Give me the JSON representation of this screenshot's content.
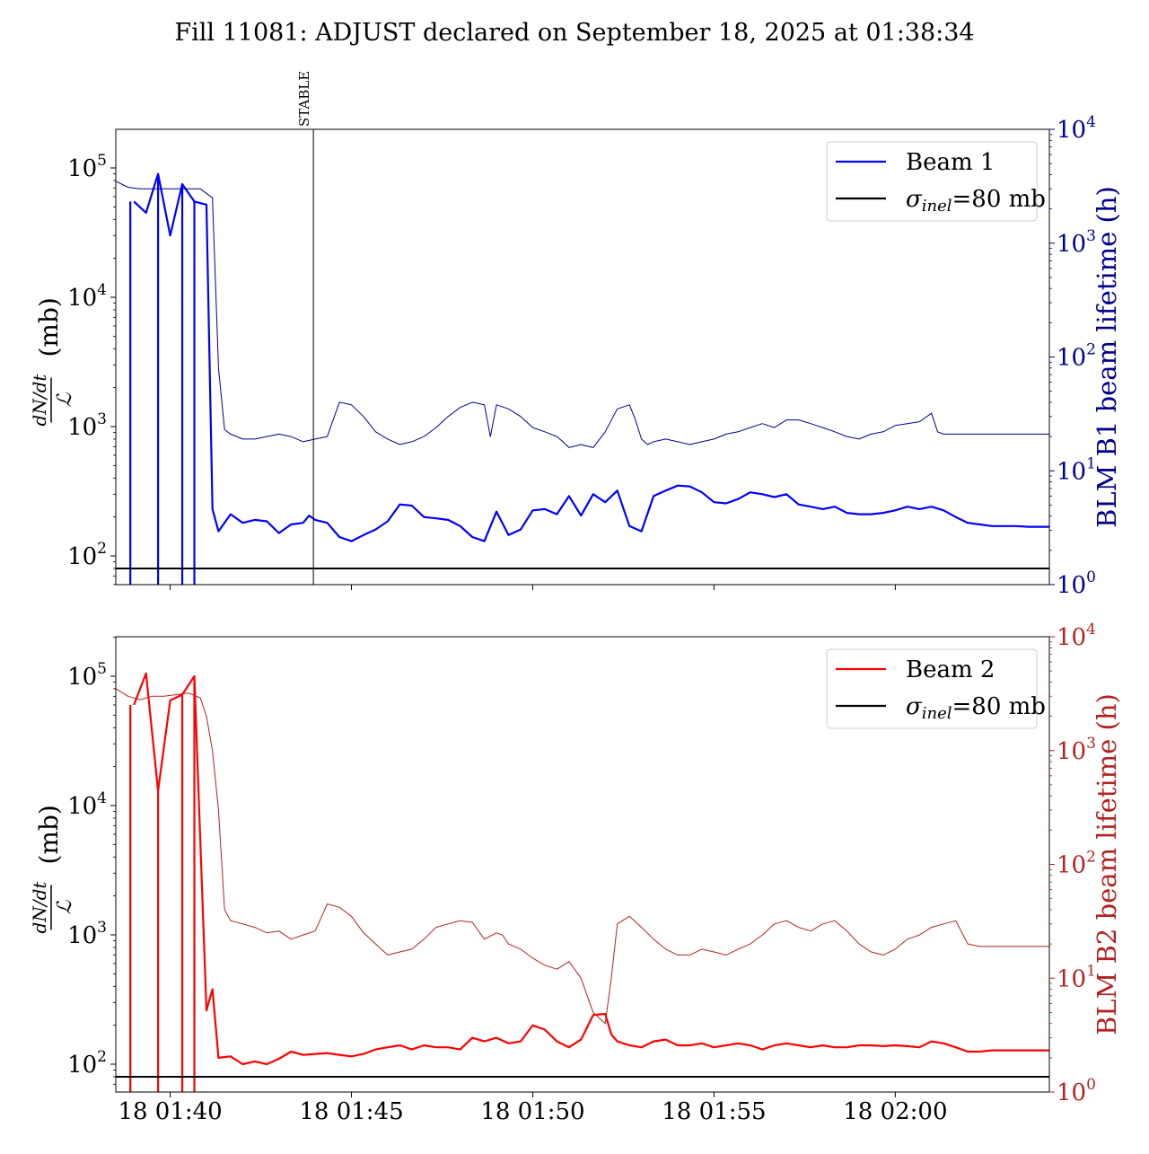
{
  "title": "Fill 11081: ADJUST declared on September 18, 2025 at 01:38:34",
  "colors": {
    "beam1": "#0000ff",
    "beam1_lifetime": "#00008b",
    "beam2": "#ff0000",
    "beam2_lifetime": "#b22222",
    "reference": "#000000",
    "axis": "#000000"
  },
  "chart_data": [
    {
      "type": "line",
      "panel": "top",
      "xlabel": "",
      "ylabel_left": "dN/dt / L (mb)",
      "ylabel_left_parts": {
        "num": "dN/dt",
        "den": "ℒ",
        "unit": "(mb)"
      },
      "ylabel_right": "BLM B1 beam lifetime (h)",
      "yscale_left": "log",
      "yscale_right": "log",
      "xlim": [
        "01:38:30",
        "02:04:15"
      ],
      "ylim_left": [
        60,
        200000
      ],
      "ylim_right": [
        1,
        10000
      ],
      "left_ticks": [
        "10^2",
        "10^3",
        "10^4",
        "10^5"
      ],
      "right_ticks": [
        "10^0",
        "10^1",
        "10^2",
        "10^3",
        "10^4"
      ],
      "x_ticks": [
        "18 01:40",
        "18 01:45",
        "18 01:50",
        "18 01:55",
        "18 02:00"
      ],
      "x_tick_labels_visible": false,
      "annotation": {
        "label": "STABLE",
        "time": "01:43:57"
      },
      "legend": {
        "position": "top-right",
        "entries": [
          "Beam 1",
          "σinel=80 mb"
        ],
        "sigma_main": "σ",
        "sigma_sub": "inel",
        "sigma_rest": "=80 mb"
      },
      "reference_line": {
        "value": 80,
        "axis": "left"
      },
      "series": [
        {
          "name": "Beam 1",
          "axis": "left",
          "x": [
            "01:39:00",
            "01:39:20",
            "01:39:40",
            "01:40:00",
            "01:40:20",
            "01:40:40",
            "01:41:00",
            "01:41:10",
            "01:41:20",
            "01:41:40",
            "01:42:00",
            "01:42:20",
            "01:42:40",
            "01:43:00",
            "01:43:20",
            "01:43:40",
            "01:43:50",
            "01:44:00",
            "01:44:20",
            "01:44:40",
            "01:45:00",
            "01:45:20",
            "01:45:40",
            "01:46:00",
            "01:46:20",
            "01:46:40",
            "01:47:00",
            "01:47:20",
            "01:47:40",
            "01:48:00",
            "01:48:20",
            "01:48:40",
            "01:49:00",
            "01:49:20",
            "01:49:40",
            "01:50:00",
            "01:50:20",
            "01:50:40",
            "01:51:00",
            "01:51:20",
            "01:51:40",
            "01:52:00",
            "01:52:20",
            "01:52:40",
            "01:53:00",
            "01:53:20",
            "01:53:40",
            "01:54:00",
            "01:54:20",
            "01:54:40",
            "01:55:00",
            "01:55:20",
            "01:55:40",
            "01:56:00",
            "01:56:20",
            "01:56:40",
            "01:57:00",
            "01:57:20",
            "01:57:40",
            "01:58:00",
            "01:58:20",
            "01:58:40",
            "01:59:00",
            "01:59:20",
            "01:59:40",
            "02:00:00",
            "02:00:20",
            "02:00:40",
            "02:01:00",
            "02:01:20",
            "02:01:40",
            "02:02:00",
            "02:02:20",
            "02:02:40",
            "02:03:00",
            "02:03:20",
            "02:03:40",
            "02:04:15"
          ],
          "y": [
            55000,
            45000,
            90000,
            30000,
            75000,
            55000,
            52000,
            230,
            155,
            210,
            180,
            190,
            185,
            150,
            175,
            180,
            205,
            190,
            180,
            140,
            130,
            145,
            160,
            185,
            250,
            245,
            200,
            195,
            190,
            170,
            140,
            130,
            220,
            145,
            160,
            225,
            230,
            210,
            290,
            205,
            300,
            260,
            320,
            170,
            155,
            290,
            320,
            350,
            345,
            310,
            260,
            255,
            275,
            310,
            300,
            285,
            300,
            250,
            240,
            230,
            240,
            215,
            210,
            210,
            215,
            225,
            240,
            230,
            240,
            225,
            200,
            180,
            175,
            170,
            170,
            170,
            168,
            168
          ]
        },
        {
          "name": "",
          "axis": "right",
          "x": [
            "01:38:30",
            "01:38:50",
            "01:39:10",
            "01:39:30",
            "01:39:50",
            "01:40:10",
            "01:40:30",
            "01:40:50",
            "01:41:10",
            "01:41:20",
            "01:41:30",
            "01:41:40",
            "01:42:00",
            "01:42:20",
            "01:42:40",
            "01:43:00",
            "01:43:20",
            "01:43:40",
            "01:44:00",
            "01:44:20",
            "01:44:40",
            "01:45:00",
            "01:45:20",
            "01:45:40",
            "01:46:00",
            "01:46:20",
            "01:46:40",
            "01:47:00",
            "01:47:20",
            "01:47:40",
            "01:48:00",
            "01:48:20",
            "01:48:40",
            "01:48:50",
            "01:49:00",
            "01:49:20",
            "01:49:40",
            "01:50:00",
            "01:50:20",
            "01:50:40",
            "01:50:50",
            "01:51:00",
            "01:51:20",
            "01:51:40",
            "01:52:00",
            "01:52:20",
            "01:52:40",
            "01:52:50",
            "01:53:00",
            "01:53:10",
            "01:53:20",
            "01:53:40",
            "01:54:00",
            "01:54:20",
            "01:54:40",
            "01:55:00",
            "01:55:20",
            "01:55:40",
            "01:56:00",
            "01:56:20",
            "01:56:40",
            "01:57:00",
            "01:57:20",
            "01:57:40",
            "01:58:00",
            "01:58:20",
            "01:58:40",
            "01:59:00",
            "01:59:20",
            "01:59:40",
            "02:00:00",
            "02:00:20",
            "02:00:40",
            "02:01:00",
            "02:01:10",
            "02:01:20",
            "02:01:40",
            "02:02:00",
            "02:02:20",
            "02:02:40",
            "02:03:00",
            "02:03:20",
            "02:03:40",
            "02:04:15"
          ],
          "y": [
            3500,
            3100,
            3000,
            3000,
            3000,
            3000,
            3000,
            3000,
            2500,
            80,
            23,
            21,
            19,
            19,
            20,
            21,
            20,
            18,
            19,
            20,
            40,
            38,
            30,
            22,
            19,
            17,
            18,
            20,
            24,
            30,
            36,
            40,
            38,
            20,
            38,
            35,
            30,
            24,
            22,
            20,
            18,
            16,
            17,
            16,
            22,
            35,
            38,
            28,
            19,
            17,
            18,
            19,
            18,
            17,
            18,
            19,
            21,
            22,
            24,
            26,
            24,
            28,
            28,
            26,
            24,
            22,
            20,
            19,
            21,
            22,
            25,
            26,
            27,
            32,
            22,
            21,
            21,
            21,
            21,
            21,
            21,
            21,
            21,
            21
          ]
        }
      ]
    },
    {
      "type": "line",
      "panel": "bottom",
      "xlabel": "",
      "ylabel_left": "dN/dt / L (mb)",
      "ylabel_left_parts": {
        "num": "dN/dt",
        "den": "ℒ",
        "unit": "(mb)"
      },
      "ylabel_right": "BLM B2 beam lifetime (h)",
      "yscale_left": "log",
      "yscale_right": "log",
      "xlim": [
        "01:38:30",
        "02:04:15"
      ],
      "ylim_left": [
        60,
        200000
      ],
      "ylim_right": [
        1,
        10000
      ],
      "left_ticks": [
        "10^2",
        "10^3",
        "10^4",
        "10^5"
      ],
      "right_ticks": [
        "10^0",
        "10^1",
        "10^2",
        "10^3",
        "10^4"
      ],
      "x_ticks": [
        "18 01:40",
        "18 01:45",
        "18 01:50",
        "18 01:55",
        "18 02:00"
      ],
      "x_tick_labels_visible": true,
      "legend": {
        "position": "top-right",
        "entries": [
          "Beam 2",
          "σinel=80 mb"
        ],
        "sigma_main": "σ",
        "sigma_sub": "inel",
        "sigma_rest": "=80 mb"
      },
      "reference_line": {
        "value": 80,
        "axis": "left"
      },
      "series": [
        {
          "name": "Beam 2",
          "axis": "left",
          "x": [
            "01:39:00",
            "01:39:20",
            "01:39:40",
            "01:40:00",
            "01:40:20",
            "01:40:40",
            "01:41:00",
            "01:41:10",
            "01:41:20",
            "01:41:40",
            "01:42:00",
            "01:42:20",
            "01:42:40",
            "01:43:00",
            "01:43:20",
            "01:43:40",
            "01:44:00",
            "01:44:20",
            "01:44:40",
            "01:45:00",
            "01:45:20",
            "01:45:40",
            "01:46:00",
            "01:46:20",
            "01:46:40",
            "01:47:00",
            "01:47:20",
            "01:47:40",
            "01:48:00",
            "01:48:20",
            "01:48:40",
            "01:49:00",
            "01:49:20",
            "01:49:40",
            "01:50:00",
            "01:50:20",
            "01:50:40",
            "01:51:00",
            "01:51:20",
            "01:51:40",
            "01:52:00",
            "01:52:10",
            "01:52:20",
            "01:52:40",
            "01:53:00",
            "01:53:20",
            "01:53:40",
            "01:54:00",
            "01:54:20",
            "01:54:40",
            "01:55:00",
            "01:55:20",
            "01:55:40",
            "01:56:00",
            "01:56:20",
            "01:56:40",
            "01:57:00",
            "01:57:20",
            "01:57:40",
            "01:58:00",
            "01:58:20",
            "01:58:40",
            "01:59:00",
            "01:59:20",
            "01:59:40",
            "02:00:00",
            "02:00:20",
            "02:00:40",
            "02:01:00",
            "02:01:20",
            "02:01:40",
            "02:02:00",
            "02:02:20",
            "02:02:40",
            "02:03:00",
            "02:03:20",
            "02:03:40",
            "02:04:15"
          ],
          "y": [
            60000,
            105000,
            13000,
            65000,
            72000,
            100000,
            260,
            380,
            112,
            115,
            100,
            105,
            100,
            110,
            125,
            118,
            120,
            122,
            118,
            115,
            120,
            130,
            135,
            140,
            130,
            140,
            135,
            135,
            130,
            160,
            150,
            160,
            145,
            150,
            200,
            185,
            150,
            135,
            155,
            240,
            245,
            170,
            150,
            140,
            135,
            150,
            155,
            140,
            140,
            145,
            135,
            140,
            145,
            140,
            130,
            140,
            145,
            140,
            135,
            140,
            135,
            135,
            140,
            140,
            138,
            140,
            138,
            135,
            150,
            145,
            135,
            125,
            125,
            128,
            128,
            128,
            128,
            128
          ]
        },
        {
          "name": "",
          "axis": "right",
          "x": [
            "01:38:30",
            "01:38:50",
            "01:39:10",
            "01:39:30",
            "01:39:50",
            "01:40:10",
            "01:40:30",
            "01:40:50",
            "01:41:00",
            "01:41:10",
            "01:41:20",
            "01:41:30",
            "01:41:40",
            "01:42:00",
            "01:42:20",
            "01:42:40",
            "01:43:00",
            "01:43:20",
            "01:43:40",
            "01:44:00",
            "01:44:20",
            "01:44:40",
            "01:45:00",
            "01:45:20",
            "01:45:40",
            "01:46:00",
            "01:46:20",
            "01:46:40",
            "01:47:00",
            "01:47:20",
            "01:47:40",
            "01:48:00",
            "01:48:20",
            "01:48:40",
            "01:49:00",
            "01:49:10",
            "01:49:20",
            "01:49:40",
            "01:50:00",
            "01:50:20",
            "01:50:40",
            "01:51:00",
            "01:51:20",
            "01:51:40",
            "01:52:00",
            "01:52:10",
            "01:52:20",
            "01:52:40",
            "01:53:00",
            "01:53:20",
            "01:53:40",
            "01:54:00",
            "01:54:20",
            "01:54:40",
            "01:55:00",
            "01:55:20",
            "01:55:40",
            "01:56:00",
            "01:56:20",
            "01:56:40",
            "01:57:00",
            "01:57:20",
            "01:57:40",
            "01:58:00",
            "01:58:20",
            "01:58:40",
            "01:59:00",
            "01:59:20",
            "01:59:40",
            "02:00:00",
            "02:00:20",
            "02:00:40",
            "02:01:00",
            "02:01:20",
            "02:01:40",
            "02:02:00",
            "02:02:20",
            "02:02:40",
            "02:03:00",
            "02:03:20",
            "02:03:40",
            "02:04:15"
          ],
          "y": [
            3500,
            3000,
            2800,
            3000,
            3000,
            3100,
            3200,
            2900,
            2000,
            1000,
            300,
            40,
            32,
            30,
            28,
            25,
            26,
            22,
            24,
            26,
            45,
            42,
            35,
            25,
            20,
            16,
            17,
            18,
            22,
            28,
            30,
            32,
            31,
            22,
            25,
            24,
            20,
            18,
            15,
            13,
            12,
            14,
            10,
            5,
            4,
            10,
            30,
            35,
            28,
            22,
            18,
            16,
            16,
            18,
            17,
            16,
            18,
            20,
            24,
            30,
            32,
            28,
            26,
            30,
            32,
            26,
            20,
            17,
            16,
            18,
            22,
            24,
            28,
            30,
            32,
            20,
            19,
            19,
            19,
            19,
            19,
            19
          ]
        }
      ]
    }
  ]
}
